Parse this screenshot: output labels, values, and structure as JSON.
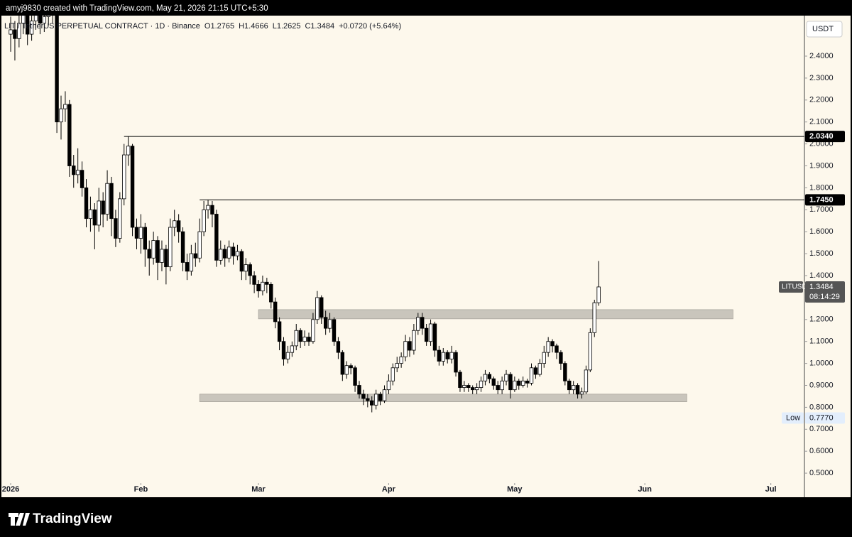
{
  "header": {
    "credit": "amyj9830 created with TradingView.com, May 21, 2026 21:15 UTC+5:30"
  },
  "chart_data": {
    "type": "candlestick",
    "symbol": "LIT / TetherUS PERPETUAL CONTRACT · 1D · Binance",
    "legend": [
      "O1.2765",
      "H1.4666",
      "L1.2625",
      "C1.3484",
      "+0.0720 (+5.64%)"
    ],
    "currency": "USDT",
    "candles": [
      [
        2.5,
        2.58,
        2.42,
        2.52
      ],
      [
        2.52,
        2.56,
        2.38,
        2.48
      ],
      [
        2.48,
        2.6,
        2.44,
        2.55
      ],
      [
        2.55,
        2.66,
        2.5,
        2.6
      ],
      [
        2.6,
        2.63,
        2.45,
        2.5
      ],
      [
        2.5,
        2.6,
        2.47,
        2.56
      ],
      [
        2.56,
        2.66,
        2.52,
        2.62
      ],
      [
        2.62,
        2.65,
        2.5,
        2.55
      ],
      [
        2.55,
        2.62,
        2.51,
        2.58
      ],
      [
        2.58,
        2.64,
        2.54,
        2.6
      ],
      [
        2.6,
        2.66,
        2.55,
        2.62
      ],
      [
        2.62,
        2.64,
        2.05,
        2.1
      ],
      [
        2.1,
        2.22,
        2.02,
        2.16
      ],
      [
        2.16,
        2.24,
        2.1,
        2.18
      ],
      [
        2.18,
        2.2,
        1.85,
        1.9
      ],
      [
        1.9,
        1.95,
        1.8,
        1.86
      ],
      [
        1.86,
        1.98,
        1.82,
        1.88
      ],
      [
        1.88,
        1.92,
        1.76,
        1.8
      ],
      [
        1.8,
        1.84,
        1.62,
        1.66
      ],
      [
        1.66,
        1.76,
        1.6,
        1.7
      ],
      [
        1.7,
        1.73,
        1.52,
        1.63
      ],
      [
        1.63,
        1.8,
        1.6,
        1.74
      ],
      [
        1.74,
        1.78,
        1.62,
        1.68
      ],
      [
        1.68,
        1.88,
        1.65,
        1.82
      ],
      [
        1.82,
        1.85,
        1.58,
        1.66
      ],
      [
        1.66,
        1.7,
        1.53,
        1.57
      ],
      [
        1.57,
        1.78,
        1.55,
        1.75
      ],
      [
        1.75,
        2.0,
        1.72,
        1.95
      ],
      [
        1.95,
        2.034,
        1.9,
        1.99
      ],
      [
        1.99,
        2.0,
        1.58,
        1.62
      ],
      [
        1.62,
        1.66,
        1.52,
        1.57
      ],
      [
        1.57,
        1.68,
        1.5,
        1.62
      ],
      [
        1.62,
        1.64,
        1.44,
        1.52
      ],
      [
        1.52,
        1.56,
        1.4,
        1.48
      ],
      [
        1.48,
        1.6,
        1.45,
        1.56
      ],
      [
        1.56,
        1.58,
        1.38,
        1.46
      ],
      [
        1.46,
        1.56,
        1.42,
        1.52
      ],
      [
        1.52,
        1.54,
        1.36,
        1.44
      ],
      [
        1.44,
        1.66,
        1.42,
        1.62
      ],
      [
        1.62,
        1.7,
        1.58,
        1.65
      ],
      [
        1.65,
        1.68,
        1.55,
        1.6
      ],
      [
        1.6,
        1.62,
        1.42,
        1.46
      ],
      [
        1.46,
        1.5,
        1.38,
        1.42
      ],
      [
        1.42,
        1.54,
        1.4,
        1.5
      ],
      [
        1.5,
        1.55,
        1.44,
        1.48
      ],
      [
        1.48,
        1.66,
        1.46,
        1.6
      ],
      [
        1.6,
        1.74,
        1.58,
        1.7
      ],
      [
        1.7,
        1.745,
        1.66,
        1.72
      ],
      [
        1.72,
        1.74,
        1.62,
        1.68
      ],
      [
        1.68,
        1.7,
        1.44,
        1.47
      ],
      [
        1.47,
        1.56,
        1.45,
        1.52
      ],
      [
        1.52,
        1.54,
        1.44,
        1.48
      ],
      [
        1.48,
        1.56,
        1.46,
        1.53
      ],
      [
        1.53,
        1.55,
        1.45,
        1.49
      ],
      [
        1.49,
        1.54,
        1.47,
        1.51
      ],
      [
        1.51,
        1.52,
        1.38,
        1.42
      ],
      [
        1.42,
        1.48,
        1.38,
        1.45
      ],
      [
        1.45,
        1.46,
        1.36,
        1.4
      ],
      [
        1.4,
        1.42,
        1.32,
        1.36
      ],
      [
        1.36,
        1.38,
        1.3,
        1.33
      ],
      [
        1.33,
        1.4,
        1.31,
        1.37
      ],
      [
        1.37,
        1.39,
        1.32,
        1.36
      ],
      [
        1.36,
        1.37,
        1.25,
        1.28
      ],
      [
        1.28,
        1.3,
        1.16,
        1.19
      ],
      [
        1.19,
        1.21,
        1.06,
        1.1
      ],
      [
        1.1,
        1.12,
        0.99,
        1.02
      ],
      [
        1.02,
        1.08,
        1.0,
        1.05
      ],
      [
        1.05,
        1.1,
        1.03,
        1.08
      ],
      [
        1.08,
        1.18,
        1.06,
        1.15
      ],
      [
        1.15,
        1.16,
        1.07,
        1.1
      ],
      [
        1.1,
        1.15,
        1.08,
        1.12
      ],
      [
        1.12,
        1.14,
        1.08,
        1.1
      ],
      [
        1.1,
        1.23,
        1.09,
        1.2
      ],
      [
        1.2,
        1.33,
        1.18,
        1.3
      ],
      [
        1.3,
        1.31,
        1.18,
        1.21
      ],
      [
        1.21,
        1.24,
        1.13,
        1.16
      ],
      [
        1.16,
        1.23,
        1.14,
        1.2
      ],
      [
        1.2,
        1.21,
        1.08,
        1.1
      ],
      [
        1.1,
        1.12,
        1.02,
        1.05
      ],
      [
        1.05,
        1.06,
        0.92,
        0.95
      ],
      [
        0.95,
        1.01,
        0.93,
        0.99
      ],
      [
        0.99,
        1.0,
        0.95,
        0.98
      ],
      [
        0.98,
        0.99,
        0.87,
        0.9
      ],
      [
        0.9,
        0.92,
        0.84,
        0.86
      ],
      [
        0.86,
        0.88,
        0.81,
        0.84
      ],
      [
        0.84,
        0.86,
        0.8,
        0.83
      ],
      [
        0.83,
        0.85,
        0.777,
        0.81
      ],
      [
        0.81,
        0.88,
        0.79,
        0.86
      ],
      [
        0.86,
        0.87,
        0.81,
        0.83
      ],
      [
        0.83,
        0.9,
        0.82,
        0.88
      ],
      [
        0.88,
        0.95,
        0.86,
        0.92
      ],
      [
        0.92,
        1.0,
        0.9,
        0.98
      ],
      [
        0.98,
        1.03,
        0.96,
        1.0
      ],
      [
        1.0,
        1.05,
        0.98,
        1.03
      ],
      [
        1.03,
        1.13,
        1.01,
        1.1
      ],
      [
        1.1,
        1.12,
        1.03,
        1.06
      ],
      [
        1.06,
        1.18,
        1.04,
        1.15
      ],
      [
        1.15,
        1.23,
        1.13,
        1.21
      ],
      [
        1.21,
        1.23,
        1.13,
        1.16
      ],
      [
        1.16,
        1.18,
        1.08,
        1.1
      ],
      [
        1.1,
        1.2,
        1.08,
        1.18
      ],
      [
        1.18,
        1.19,
        1.03,
        1.06
      ],
      [
        1.06,
        1.08,
        0.99,
        1.01
      ],
      [
        1.01,
        1.07,
        0.99,
        1.05
      ],
      [
        1.05,
        1.06,
        1.0,
        1.02
      ],
      [
        1.02,
        1.08,
        1.0,
        1.05
      ],
      [
        1.05,
        1.06,
        0.94,
        0.96
      ],
      [
        0.96,
        0.97,
        0.87,
        0.89
      ],
      [
        0.89,
        0.92,
        0.87,
        0.9
      ],
      [
        0.9,
        0.91,
        0.87,
        0.89
      ],
      [
        0.89,
        0.9,
        0.86,
        0.88
      ],
      [
        0.88,
        0.91,
        0.86,
        0.89
      ],
      [
        0.89,
        0.94,
        0.87,
        0.92
      ],
      [
        0.92,
        0.97,
        0.9,
        0.95
      ],
      [
        0.95,
        0.96,
        0.91,
        0.93
      ],
      [
        0.93,
        0.94,
        0.88,
        0.9
      ],
      [
        0.9,
        0.92,
        0.86,
        0.88
      ],
      [
        0.88,
        0.94,
        0.86,
        0.92
      ],
      [
        0.92,
        0.97,
        0.9,
        0.95
      ],
      [
        0.95,
        0.96,
        0.84,
        0.88
      ],
      [
        0.88,
        0.94,
        0.87,
        0.92
      ],
      [
        0.92,
        0.93,
        0.88,
        0.9
      ],
      [
        0.9,
        0.94,
        0.89,
        0.92
      ],
      [
        0.92,
        0.93,
        0.89,
        0.91
      ],
      [
        0.91,
        1.0,
        0.9,
        0.98
      ],
      [
        0.98,
        0.99,
        0.93,
        0.95
      ],
      [
        0.95,
        1.02,
        0.94,
        1.0
      ],
      [
        1.0,
        1.08,
        0.98,
        1.05
      ],
      [
        1.05,
        1.12,
        1.03,
        1.1
      ],
      [
        1.1,
        1.11,
        1.05,
        1.08
      ],
      [
        1.08,
        1.09,
        1.02,
        1.05
      ],
      [
        1.05,
        1.06,
        0.97,
        1.0
      ],
      [
        1.0,
        1.01,
        0.9,
        0.92
      ],
      [
        0.92,
        0.93,
        0.86,
        0.88
      ],
      [
        0.88,
        0.92,
        0.86,
        0.9
      ],
      [
        0.9,
        0.91,
        0.84,
        0.86
      ],
      [
        0.86,
        0.89,
        0.84,
        0.87
      ],
      [
        0.87,
        0.99,
        0.86,
        0.97
      ],
      [
        0.97,
        1.16,
        0.96,
        1.14
      ],
      [
        1.14,
        1.29,
        1.12,
        1.2765
      ],
      [
        1.2765,
        1.4666,
        1.2625,
        1.3484
      ]
    ],
    "ylim": [
      0.4615,
      2.5845
    ],
    "yticks": [
      {
        "value": 0.5,
        "label": "0.5000"
      },
      {
        "value": 0.6,
        "label": "0.6000"
      },
      {
        "value": 0.7,
        "label": "0.7000"
      },
      {
        "value": 0.8,
        "label": "0.8000"
      },
      {
        "value": 0.9,
        "label": "0.9000"
      },
      {
        "value": 1.0,
        "label": "1.0000"
      },
      {
        "value": 1.1,
        "label": "1.1000"
      },
      {
        "value": 1.2,
        "label": "1.2000"
      },
      {
        "value": 1.3,
        "label": "1.3000"
      },
      {
        "value": 1.4,
        "label": "1.4000"
      },
      {
        "value": 1.5,
        "label": "1.5000"
      },
      {
        "value": 1.6,
        "label": "1.6000"
      },
      {
        "value": 1.7,
        "label": "1.7000"
      },
      {
        "value": 1.8,
        "label": "1.8000"
      },
      {
        "value": 1.9,
        "label": "1.9000"
      },
      {
        "value": 2.0,
        "label": "2.0000"
      },
      {
        "value": 2.1,
        "label": "2.1000"
      },
      {
        "value": 2.2,
        "label": "2.2000"
      },
      {
        "value": 2.3,
        "label": "2.3000"
      },
      {
        "value": 2.4,
        "label": "2.4000"
      }
    ],
    "xlim": [
      -2.54,
      189
    ],
    "xticks": [
      {
        "value": 0,
        "label": "2026"
      },
      {
        "value": 31,
        "label": "Feb"
      },
      {
        "value": 59,
        "label": "Mar"
      },
      {
        "value": 90,
        "label": "Apr"
      },
      {
        "value": 120,
        "label": "May"
      },
      {
        "value": 151,
        "label": "Jun"
      },
      {
        "value": 181,
        "label": "Jul"
      }
    ],
    "levels": [
      {
        "value": 2.034,
        "label": "2.0340",
        "start": 27
      },
      {
        "value": 1.745,
        "label": "1.7450",
        "start": 45
      }
    ],
    "zones": [
      {
        "from": 1.203,
        "to": 1.245,
        "start": 59,
        "end": 172
      },
      {
        "from": 0.825,
        "to": 0.86,
        "start": 45,
        "end": 161
      }
    ],
    "last_price": {
      "symbol": "LITUSDT.P",
      "countdown": "08:14:29"
    },
    "low": {
      "name": "Low",
      "value": 0.777,
      "label": "0.7770"
    },
    "colors": {
      "up": "#ffffff",
      "down": "#000000",
      "outline": "#000000",
      "zone": "#c9c5bc",
      "background": "#fdf8ec"
    }
  },
  "footer": {
    "brand": "TradingView"
  }
}
